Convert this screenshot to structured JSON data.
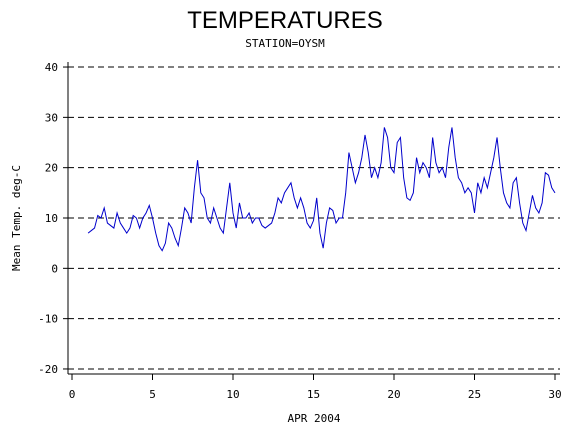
{
  "chart_data": {
    "type": "line",
    "title": "TEMPERATURES",
    "subtitle": "STATION=OYSM",
    "x_label": "APR 2004",
    "y_label": "Mean Temp. deg-C",
    "xlim": [
      0,
      30
    ],
    "xticks": [
      0,
      5,
      10,
      15,
      20,
      25,
      30
    ],
    "ylim": [
      -21,
      41
    ],
    "yticks": [
      -20,
      -10,
      0,
      10,
      20,
      30,
      40
    ],
    "grid": true,
    "x": [
      1.0,
      1.2,
      1.4,
      1.6,
      1.8,
      2.0,
      2.2,
      2.4,
      2.6,
      2.8,
      3.0,
      3.2,
      3.4,
      3.6,
      3.8,
      4.0,
      4.2,
      4.4,
      4.6,
      4.8,
      5.0,
      5.2,
      5.4,
      5.6,
      5.8,
      6.0,
      6.2,
      6.4,
      6.6,
      6.8,
      7.0,
      7.2,
      7.4,
      7.6,
      7.8,
      8.0,
      8.2,
      8.4,
      8.6,
      8.8,
      9.0,
      9.2,
      9.4,
      9.6,
      9.8,
      10.0,
      10.2,
      10.4,
      10.6,
      10.8,
      11.0,
      11.2,
      11.4,
      11.6,
      11.8,
      12.0,
      12.2,
      12.4,
      12.6,
      12.8,
      13.0,
      13.2,
      13.4,
      13.6,
      13.8,
      14.0,
      14.2,
      14.4,
      14.6,
      14.8,
      15.0,
      15.2,
      15.4,
      15.6,
      15.8,
      16.0,
      16.2,
      16.4,
      16.6,
      16.8,
      17.0,
      17.2,
      17.4,
      17.6,
      17.8,
      18.0,
      18.2,
      18.4,
      18.6,
      18.8,
      19.0,
      19.2,
      19.4,
      19.6,
      19.8,
      20.0,
      20.2,
      20.4,
      20.6,
      20.8,
      21.0,
      21.2,
      21.4,
      21.6,
      21.8,
      22.0,
      22.2,
      22.4,
      22.6,
      22.8,
      23.0,
      23.2,
      23.4,
      23.6,
      23.8,
      24.0,
      24.2,
      24.4,
      24.6,
      24.8,
      25.0,
      25.2,
      25.4,
      25.6,
      25.8,
      26.0,
      26.2,
      26.4,
      26.6,
      26.8,
      27.0,
      27.2,
      27.4,
      27.6,
      27.8,
      28.0,
      28.2,
      28.4,
      28.6,
      28.8,
      29.0,
      29.2,
      29.4,
      29.6,
      29.8,
      30.0
    ],
    "series": [
      {
        "name": "Mean Temp",
        "color": "#0000cc",
        "values": [
          7,
          7.5,
          8,
          10.5,
          10,
          12,
          9,
          8.5,
          8,
          11,
          9,
          8,
          7,
          8,
          10.5,
          10,
          8,
          10,
          11,
          12.5,
          10,
          7,
          4.5,
          3.5,
          5,
          9,
          8,
          6,
          4.5,
          8,
          12,
          11,
          9,
          16,
          21.5,
          15,
          14,
          10,
          9,
          12,
          10,
          8,
          7,
          12,
          17,
          11,
          8,
          13,
          10,
          10,
          11,
          9,
          10,
          10,
          8.5,
          8,
          8.5,
          9,
          11,
          14,
          13,
          15,
          16,
          17,
          14,
          12,
          14,
          12,
          9,
          8,
          9.5,
          14,
          7,
          4,
          9,
          12,
          11.5,
          9,
          10,
          10,
          15,
          23,
          20,
          17,
          19,
          22,
          26.5,
          23,
          18,
          20,
          18,
          21,
          28,
          26,
          20,
          19,
          25,
          26,
          18,
          14,
          13.5,
          15,
          22,
          19,
          21,
          20,
          18,
          26,
          21,
          19,
          20,
          18,
          24,
          28,
          22,
          18,
          17,
          15,
          16,
          15,
          11,
          17,
          15,
          18,
          16,
          19,
          22,
          26,
          20,
          15,
          13,
          12,
          17,
          18,
          13,
          9,
          7.5,
          11,
          14.5,
          12,
          11,
          13,
          19,
          18.5,
          16,
          15
        ]
      }
    ]
  }
}
